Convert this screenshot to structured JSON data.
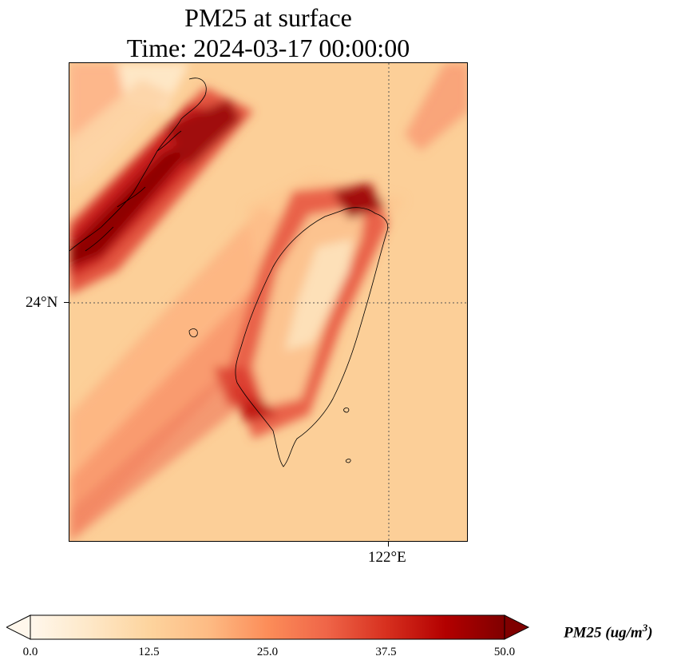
{
  "title": {
    "line1": "PM25 at surface",
    "line2": "Time: 2024-03-17 00:00:00"
  },
  "map": {
    "lat_label": "24°N",
    "lon_label": "122°E",
    "gridlines": "dotted"
  },
  "colorbar": {
    "label_main": "PM25 (ug/m",
    "label_exp": "3",
    "label_close": ")",
    "ticks": [
      "0.0",
      "12.5",
      "25.0",
      "37.5",
      "50.0"
    ],
    "min": 0,
    "max": 50,
    "extend": "both",
    "colormap": "OrRd",
    "colors": [
      "#fff7ec",
      "#fee8c8",
      "#fdd49e",
      "#fdbb84",
      "#fc8d59",
      "#ef6548",
      "#d7301f",
      "#b30000",
      "#7f0000"
    ]
  }
}
